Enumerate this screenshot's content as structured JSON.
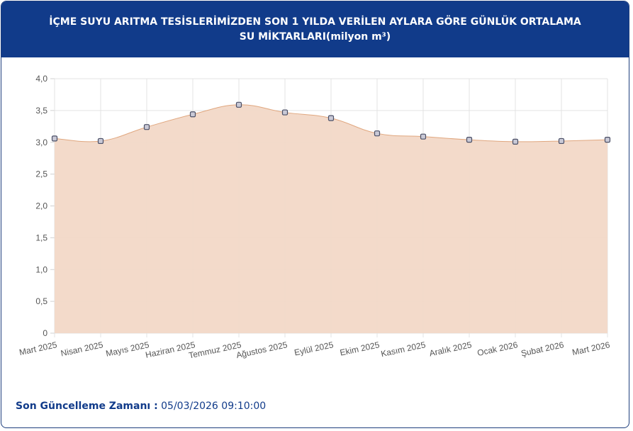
{
  "header": {
    "title": "İÇME SUYU ARITMA TESİSLERİMİZDEN SON 1 YILDA VERİLEN AYLARA GÖRE GÜNLÜK ORTALAMA SU MİKTARLARI(milyon m³)"
  },
  "footer": {
    "label": "Son Güncelleme Zamanı :",
    "value": "05/03/2026 09:10:00"
  },
  "colors": {
    "header_bg": "#113b8a",
    "area_fill": "#f2d8c7",
    "line": "#e0a77f",
    "marker_fill": "#c9c9d6",
    "marker_stroke": "#4a4f66"
  },
  "chart_data": {
    "type": "area",
    "categories": [
      "Mart 2025",
      "Nisan 2025",
      "Mayıs 2025",
      "Haziran 2025",
      "Temmuz 2025",
      "Ağustos 2025",
      "Eylül 2025",
      "Ekim 2025",
      "Kasım 2025",
      "Aralık 2025",
      "Ocak 2026",
      "Şubat 2026",
      "Mart 2026"
    ],
    "series": [
      {
        "values": [
          3.06,
          3.02,
          3.24,
          3.44,
          3.59,
          3.47,
          3.38,
          3.14,
          3.09,
          3.04,
          3.01,
          3.02,
          3.04
        ]
      }
    ],
    "ylim": [
      0,
      4
    ],
    "y_ticks": [
      "0",
      "0,5",
      "1,0",
      "1,5",
      "2,0",
      "2,5",
      "3,0",
      "3,5",
      "4,0"
    ],
    "grid": true,
    "legend": "none"
  }
}
